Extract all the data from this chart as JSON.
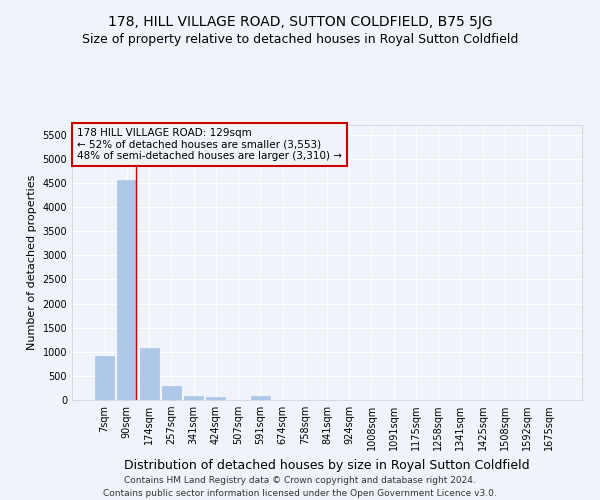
{
  "title": "178, HILL VILLAGE ROAD, SUTTON COLDFIELD, B75 5JG",
  "subtitle": "Size of property relative to detached houses in Royal Sutton Coldfield",
  "xlabel": "Distribution of detached houses by size in Royal Sutton Coldfield",
  "ylabel": "Number of detached properties",
  "bar_labels": [
    "7sqm",
    "90sqm",
    "174sqm",
    "257sqm",
    "341sqm",
    "424sqm",
    "507sqm",
    "591sqm",
    "674sqm",
    "758sqm",
    "841sqm",
    "924sqm",
    "1008sqm",
    "1091sqm",
    "1175sqm",
    "1258sqm",
    "1341sqm",
    "1425sqm",
    "1508sqm",
    "1592sqm",
    "1675sqm"
  ],
  "bar_values": [
    920,
    4560,
    1080,
    295,
    90,
    65,
    0,
    75,
    0,
    0,
    0,
    0,
    0,
    0,
    0,
    0,
    0,
    0,
    0,
    0,
    0
  ],
  "bar_color": "#aec6e8",
  "property_line_x": 1.42,
  "annotation_line0": "178 HILL VILLAGE ROAD: 129sqm",
  "annotation_line1": "← 52% of detached houses are smaller (3,553)",
  "annotation_line2": "48% of semi-detached houses are larger (3,310) →",
  "annotation_box_color": "#cc0000",
  "ylim": [
    0,
    5700
  ],
  "yticks": [
    0,
    500,
    1000,
    1500,
    2000,
    2500,
    3000,
    3500,
    4000,
    4500,
    5000,
    5500
  ],
  "footer_line1": "Contains HM Land Registry data © Crown copyright and database right 2024.",
  "footer_line2": "Contains public sector information licensed under the Open Government Licence v3.0.",
  "bg_color": "#f0f4fa",
  "grid_color": "#ffffff",
  "title_fontsize": 10,
  "subtitle_fontsize": 9,
  "xlabel_fontsize": 9,
  "ylabel_fontsize": 8,
  "tick_fontsize": 7,
  "annotation_fontsize": 7.5,
  "footer_fontsize": 6.5
}
